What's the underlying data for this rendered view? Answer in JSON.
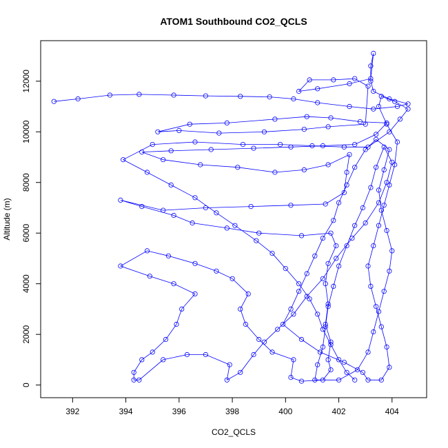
{
  "chart_data": {
    "type": "scatter",
    "title": "ATOM1 Southbound CO2_QCLS",
    "xlabel": "CO2_QCLS",
    "ylabel": "Altitude (m)",
    "xlim": [
      390.8,
      405.3
    ],
    "ylim": [
      -500,
      13600
    ],
    "xticks": [
      392,
      394,
      396,
      398,
      400,
      402,
      404
    ],
    "yticks": [
      0,
      2000,
      4000,
      6000,
      8000,
      10000,
      12000
    ],
    "grid": false,
    "legend": "none",
    "color": "#0000ff",
    "marker": "open-circle",
    "connected": true,
    "series": [
      {
        "values": [
          [
            391.3,
            11200
          ],
          [
            392.2,
            11300
          ],
          [
            393.4,
            11450
          ],
          [
            394.5,
            11480
          ],
          [
            395.8,
            11450
          ],
          [
            397.0,
            11420
          ],
          [
            398.3,
            11400
          ],
          [
            399.4,
            11380
          ],
          [
            400.3,
            11300
          ],
          [
            401.2,
            11150
          ],
          [
            402.4,
            11000
          ],
          [
            403.3,
            10900
          ],
          [
            404.2,
            11000
          ],
          [
            404.6,
            11100
          ],
          [
            403.9,
            11300
          ],
          [
            403.3,
            11600
          ],
          [
            403.2,
            12000
          ],
          [
            403.2,
            12600
          ],
          [
            403.3,
            13100
          ],
          [
            403.2,
            12100
          ],
          [
            402.4,
            11900
          ],
          [
            401.2,
            11700
          ],
          [
            400.5,
            11600
          ],
          [
            400.9,
            12050
          ],
          [
            401.8,
            12050
          ],
          [
            402.6,
            12100
          ],
          [
            403.1,
            11800
          ],
          [
            403.0,
            10300
          ],
          [
            401.6,
            10200
          ],
          [
            400.7,
            10100
          ],
          [
            399.2,
            10000
          ],
          [
            397.5,
            9950
          ],
          [
            396.0,
            10050
          ],
          [
            395.2,
            10000
          ],
          [
            396.4,
            10300
          ],
          [
            397.8,
            10350
          ],
          [
            399.6,
            10500
          ],
          [
            400.8,
            10600
          ],
          [
            401.7,
            10550
          ],
          [
            402.8,
            10400
          ],
          [
            403.8,
            10350
          ],
          [
            403.4,
            9900
          ],
          [
            402.6,
            9500
          ],
          [
            401.4,
            9450
          ],
          [
            400.2,
            9400
          ],
          [
            398.8,
            9350
          ],
          [
            397.2,
            9300
          ],
          [
            395.7,
            9250
          ],
          [
            394.6,
            9200
          ],
          [
            395.4,
            8900
          ],
          [
            396.8,
            8700
          ],
          [
            398.2,
            8600
          ],
          [
            399.6,
            8400
          ],
          [
            400.7,
            8500
          ],
          [
            401.6,
            8700
          ],
          [
            402.4,
            9100
          ],
          [
            402.3,
            8400
          ],
          [
            402.2,
            7600
          ],
          [
            401.5,
            7150
          ],
          [
            400.2,
            7100
          ],
          [
            398.7,
            7050
          ],
          [
            397.0,
            7000
          ],
          [
            395.4,
            6900
          ],
          [
            393.8,
            7300
          ],
          [
            394.6,
            7050
          ],
          [
            395.8,
            6700
          ],
          [
            396.5,
            6400
          ],
          [
            397.8,
            6200
          ],
          [
            399.0,
            6000
          ],
          [
            400.6,
            5900
          ],
          [
            401.7,
            6000
          ],
          [
            401.9,
            5500
          ],
          [
            401.6,
            4800
          ],
          [
            401.5,
            4000
          ],
          [
            401.6,
            3200
          ],
          [
            401.5,
            2400
          ],
          [
            401.7,
            1700
          ],
          [
            401.6,
            1000
          ],
          [
            401.7,
            600
          ],
          [
            401.4,
            200
          ],
          [
            400.6,
            150
          ],
          [
            400.2,
            300
          ],
          [
            400.3,
            1000
          ],
          [
            399.5,
            1300
          ],
          [
            399.0,
            1800
          ],
          [
            398.5,
            2400
          ],
          [
            398.3,
            3000
          ],
          [
            398.6,
            3600
          ],
          [
            398.0,
            4200
          ],
          [
            397.4,
            4500
          ],
          [
            396.6,
            4800
          ],
          [
            395.6,
            5100
          ],
          [
            394.8,
            5300
          ],
          [
            393.8,
            4700
          ],
          [
            394.9,
            4300
          ],
          [
            395.8,
            4000
          ],
          [
            396.6,
            3600
          ],
          [
            396.1,
            3000
          ],
          [
            395.9,
            2400
          ],
          [
            395.5,
            1800
          ],
          [
            395.0,
            1300
          ],
          [
            394.6,
            1000
          ],
          [
            394.3,
            500
          ],
          [
            394.3,
            200
          ],
          [
            394.5,
            200
          ],
          [
            395.4,
            1000
          ],
          [
            396.3,
            1200
          ],
          [
            397.0,
            1200
          ],
          [
            397.9,
            800
          ],
          [
            397.8,
            200
          ],
          [
            398.3,
            500
          ],
          [
            398.8,
            1200
          ],
          [
            399.2,
            1700
          ],
          [
            399.7,
            2200
          ],
          [
            400.3,
            2800
          ],
          [
            400.8,
            3500
          ],
          [
            401.4,
            4200
          ],
          [
            401.9,
            5000
          ],
          [
            402.5,
            5800
          ],
          [
            403.0,
            6400
          ],
          [
            403.5,
            7200
          ],
          [
            403.8,
            8000
          ],
          [
            404.0,
            8800
          ],
          [
            403.7,
            9400
          ],
          [
            403.4,
            8600
          ],
          [
            403.2,
            7800
          ],
          [
            402.9,
            7000
          ],
          [
            402.6,
            6300
          ],
          [
            402.3,
            5500
          ],
          [
            402.0,
            4700
          ],
          [
            401.8,
            3900
          ],
          [
            401.6,
            3100
          ],
          [
            401.5,
            2300
          ],
          [
            401.4,
            1500
          ],
          [
            401.2,
            800
          ],
          [
            401.1,
            200
          ],
          [
            402.0,
            200
          ],
          [
            402.7,
            600
          ],
          [
            403.1,
            1300
          ],
          [
            403.3,
            2100
          ],
          [
            403.5,
            2900
          ],
          [
            403.7,
            3700
          ],
          [
            403.9,
            4500
          ],
          [
            404.0,
            5300
          ],
          [
            403.8,
            6100
          ],
          [
            403.6,
            6900
          ],
          [
            403.5,
            7700
          ],
          [
            403.7,
            8500
          ],
          [
            403.9,
            9300
          ],
          [
            403.4,
            9700
          ],
          [
            403.0,
            9300
          ],
          [
            402.6,
            8600
          ],
          [
            402.3,
            7900
          ],
          [
            402.0,
            7200
          ],
          [
            401.8,
            6500
          ],
          [
            401.4,
            5800
          ],
          [
            401.1,
            5100
          ],
          [
            400.8,
            4400
          ],
          [
            400.5,
            3700
          ],
          [
            400.2,
            3000
          ],
          [
            399.9,
            2400
          ],
          [
            400.6,
            1800
          ],
          [
            401.3,
            1300
          ],
          [
            402.2,
            900
          ],
          [
            402.9,
            500
          ],
          [
            403.1,
            200
          ],
          [
            403.6,
            200
          ],
          [
            403.9,
            700
          ],
          [
            403.8,
            1500
          ],
          [
            403.6,
            2300
          ],
          [
            403.4,
            3100
          ],
          [
            403.2,
            3900
          ],
          [
            403.1,
            4700
          ],
          [
            403.3,
            5500
          ],
          [
            403.5,
            6300
          ],
          [
            403.7,
            7100
          ],
          [
            403.9,
            7900
          ],
          [
            404.1,
            8700
          ],
          [
            404.2,
            9600
          ],
          [
            403.8,
            10300
          ],
          [
            403.5,
            11000
          ],
          [
            403.6,
            11400
          ],
          [
            404.1,
            11200
          ],
          [
            404.6,
            10900
          ],
          [
            404.3,
            10500
          ],
          [
            403.9,
            10000
          ],
          [
            403.1,
            9400
          ],
          [
            402.2,
            9400
          ],
          [
            401.0,
            9450
          ],
          [
            399.8,
            9500
          ],
          [
            398.4,
            9500
          ],
          [
            396.6,
            9600
          ],
          [
            395.0,
            9500
          ],
          [
            393.9,
            8900
          ],
          [
            394.8,
            8400
          ],
          [
            395.7,
            7900
          ],
          [
            396.6,
            7400
          ],
          [
            397.4,
            6800
          ],
          [
            398.1,
            6300
          ],
          [
            398.9,
            5700
          ],
          [
            399.5,
            5200
          ],
          [
            400.0,
            4600
          ],
          [
            400.5,
            4000
          ],
          [
            400.9,
            3400
          ],
          [
            401.2,
            2800
          ],
          [
            401.4,
            2200
          ],
          [
            401.7,
            1600
          ],
          [
            402.0,
            1000
          ],
          [
            402.3,
            500
          ],
          [
            402.6,
            200
          ]
        ]
      }
    ]
  }
}
